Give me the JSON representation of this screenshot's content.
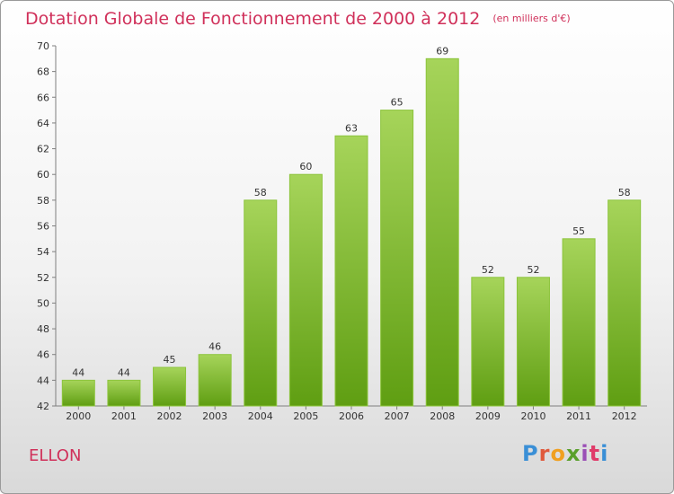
{
  "header": {
    "title": "Dotation Globale de Fonctionnement de 2000 à 2012",
    "unit": "(en milliers d'€)"
  },
  "commune": "ELLON",
  "logo": {
    "text": "Proxiti",
    "colors": [
      "#3a8fd6",
      "#e05a3c",
      "#f0a020",
      "#5aa02c",
      "#9b4fb6",
      "#e03c6a"
    ]
  },
  "colors": {
    "title": "#d0305a",
    "bar_top": "#a6d45a",
    "bar_bottom": "#5f9e12"
  },
  "chart_data": {
    "type": "bar",
    "categories": [
      "2000",
      "2001",
      "2002",
      "2003",
      "2004",
      "2005",
      "2006",
      "2007",
      "2008",
      "2009",
      "2010",
      "2011",
      "2012"
    ],
    "values": [
      44,
      44,
      45,
      46,
      58,
      60,
      63,
      65,
      69,
      52,
      52,
      55,
      58
    ],
    "ylim": [
      42,
      70
    ],
    "yticks": [
      42,
      44,
      46,
      48,
      50,
      52,
      54,
      56,
      58,
      60,
      62,
      64,
      66,
      68,
      70
    ],
    "grid": false,
    "legend": "none"
  }
}
